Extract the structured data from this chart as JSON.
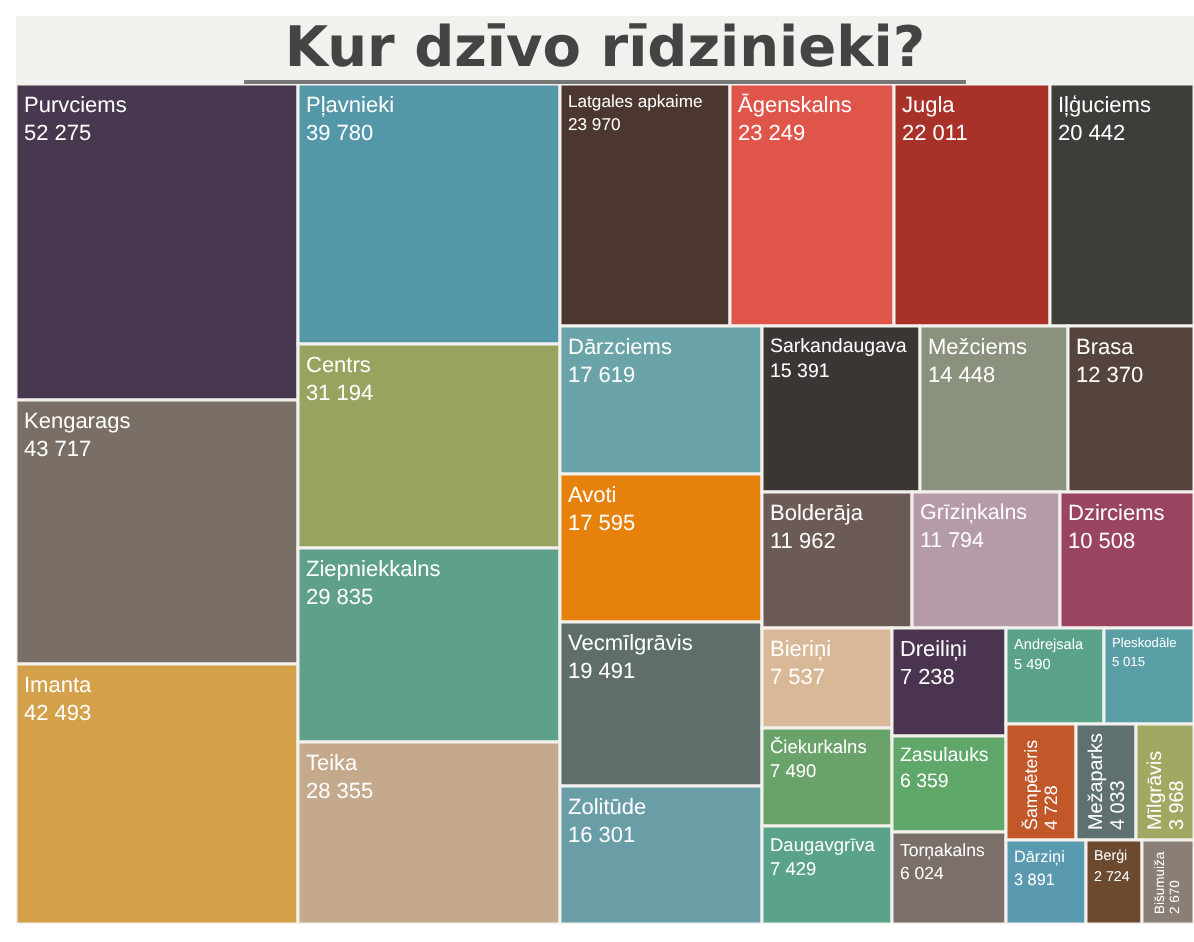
{
  "chart_data": {
    "type": "other",
    "title": "Kur dzīvo rīdzinieki?",
    "categories": [
      "Purvciems",
      "Kengarags",
      "Imanta",
      "Pļavnieki",
      "Centrs",
      "Ziepniekkalns",
      "Teika",
      "Latgales apkaime",
      "Āgenskalns",
      "Jugla",
      "Iļģuciems",
      "Dārzciems",
      "Avoti",
      "Vecmīlgrāvis",
      "Zolitūde",
      "Sarkandaugava",
      "Mežciems",
      "Brasa",
      "Bolderāja",
      "Grīziņkalns",
      "Dzirciems",
      "Bieriņi",
      "Čiekurkalns",
      "Daugavgrīva",
      "Dreiliņi",
      "Zasulauks",
      "Torņakalns",
      "Andrejsala",
      "Pleskodāle",
      "Šampēteris",
      "Mežaparks",
      "Mīlgrāvis",
      "Dārziņi",
      "Berģi",
      "Bišumuiža"
    ],
    "values": [
      52275,
      43717,
      42493,
      39780,
      31194,
      29835,
      28355,
      23970,
      23249,
      22011,
      20442,
      17619,
      17595,
      19491,
      16301,
      15391,
      14448,
      12370,
      11962,
      11794,
      10508,
      7537,
      7490,
      7429,
      7238,
      6359,
      6024,
      5490,
      5015,
      4728,
      4033,
      3968,
      3891,
      2724,
      2670
    ],
    "value_labels": [
      "52 275",
      "43 717",
      "42 493",
      "39 780",
      "31 194",
      "29 835",
      "28 355",
      "23 970",
      "23 249",
      "22 011",
      "20 442",
      "17 619",
      "17 595",
      "19 491",
      "16 301",
      "15 391",
      "14 448",
      "12 370",
      "11 962",
      "11 794",
      "10 508",
      "7 537",
      "7 490",
      "7 429",
      "7 238",
      "6 359",
      "6 024",
      "5 490",
      "5 015",
      "4 728",
      "4 033",
      "3 968",
      "3 891",
      "2 724",
      "2 670"
    ],
    "colors": [
      "#47374f",
      "#7a6f66",
      "#d4a04a",
      "#5497a8",
      "#98a35f",
      "#5fa08a",
      "#c4a98c",
      "#4b372f",
      "#e0554a",
      "#a8322a",
      "#3f3d3a",
      "#6aa3a8",
      "#e6820c",
      "#5f6e6a",
      "#6a9ea6",
      "#3b3633",
      "#8a927e",
      "#54443d",
      "#6b5a55",
      "#b59aa8",
      "#9a4560",
      "#d8b896",
      "#6aa36a",
      "#5aa38a",
      "#4a3450",
      "#5fa86a",
      "#7a7069",
      "#5aa38a",
      "#5a9ea6",
      "#c2572a",
      "#5f7070",
      "#a0a862",
      "#5a9ab0",
      "#6b4a30",
      "#8a7f76"
    ]
  }
}
